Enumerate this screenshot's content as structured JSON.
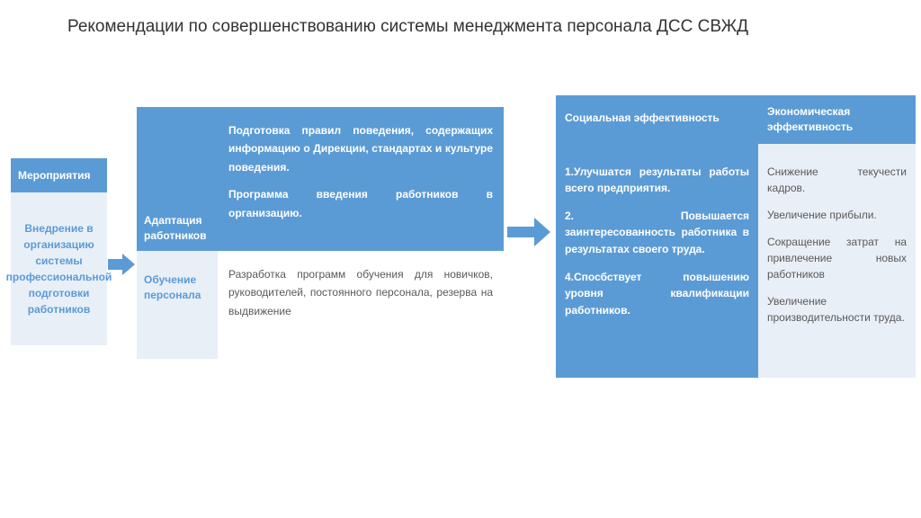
{
  "title": "Рекомендации по совершенствованию системы менеджмента персонала ДСС СВЖД",
  "colors": {
    "primary": "#5b9bd5",
    "light": "#e9eff7",
    "text_muted": "#595959",
    "background": "#ffffff"
  },
  "col1": {
    "header": "Мероприятия",
    "body": "Внедрение в организацию системы профессиональной подготовки работников"
  },
  "table2": {
    "rows": [
      {
        "label": "Адаптация работников",
        "desc_lines": [
          "Подготовка правил поведения, содержащих информацию о Дирекции, стандартах и культуре поведения.",
          "Программа введения работников в организацию."
        ]
      },
      {
        "label": "Обучение персонала",
        "desc_lines": [
          "Разработка программ обучения для новичков, руководителей, постоянного персонала, резерва на выдвижение"
        ]
      }
    ]
  },
  "table3": {
    "headers": {
      "h1": "Социальная эффективность",
      "h2": "Экономическая эффективность"
    },
    "social": [
      "1.Улучшатся результаты работы всего предприятия.",
      "2. Повышается заинтересованность работника в результатах своего труда.",
      "4.Спосбствует повышению уровня квалификации работников."
    ],
    "economic": [
      "Снижение текучести кадров.",
      "Увеличение прибыли.",
      "Сокращение затрат на привлечение новых работников",
      "Увеличение производительности труда."
    ]
  }
}
